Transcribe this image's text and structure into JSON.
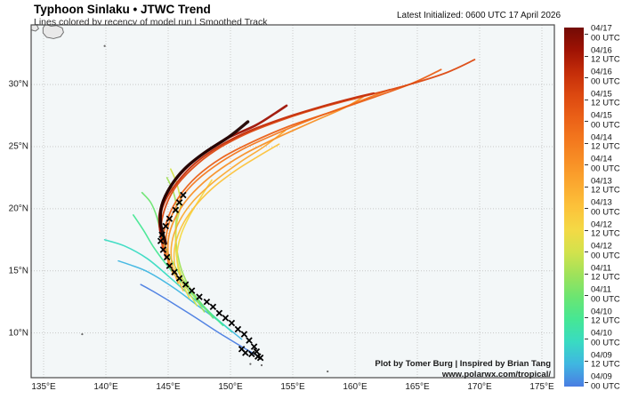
{
  "header": {
    "title": "Typhoon Sinlaku • JTWC Trend",
    "subtitle": "Lines colored by recency of model run | Smoothed Track",
    "latest_init": "Latest Initialized: 0600 UTC 17 April 2026"
  },
  "credits": {
    "line1": "Plot by Tomer Burg | Inspired by Brian Tang",
    "line2": "www.polarwx.com/tropical/"
  },
  "colors": {
    "ocean": "#f3f7f8",
    "land_fill": "#e9e9e9",
    "land_stroke": "#666666",
    "grid": "#c8c8c8",
    "frame": "#4a4a4a",
    "observed_marker": "#000000"
  },
  "chart_data": {
    "type": "line",
    "title": "Typhoon Sinlaku • JTWC Trend",
    "x_axis": {
      "ticks": [
        135,
        140,
        145,
        150,
        155,
        160,
        165,
        170,
        175
      ],
      "suffix": "°E",
      "range": [
        134,
        176
      ]
    },
    "y_axis": {
      "ticks": [
        10,
        15,
        20,
        25,
        30
      ],
      "suffix": "°N",
      "range": [
        6.4,
        34.8
      ]
    },
    "grid": true,
    "legend_position": "right-colorbar",
    "observed_track": {
      "marker": "x",
      "points": [
        [
          146.2,
          21.1
        ],
        [
          145.9,
          20.5
        ],
        [
          145.6,
          19.9
        ],
        [
          145.1,
          19.2
        ],
        [
          144.8,
          18.6
        ],
        [
          144.5,
          17.9
        ],
        [
          144.4,
          17.4
        ],
        [
          144.6,
          16.7
        ],
        [
          144.9,
          16.1
        ],
        [
          145.1,
          15.4
        ],
        [
          145.5,
          14.9
        ],
        [
          145.9,
          14.4
        ],
        [
          146.4,
          13.9
        ],
        [
          146.9,
          13.4
        ],
        [
          147.5,
          12.9
        ],
        [
          148.1,
          12.5
        ],
        [
          148.6,
          12.1
        ],
        [
          149.1,
          11.6
        ],
        [
          149.6,
          11.2
        ],
        [
          150.1,
          10.8
        ],
        [
          150.6,
          10.3
        ],
        [
          151.1,
          9.9
        ],
        [
          151.5,
          9.4
        ],
        [
          151.9,
          8.9
        ],
        [
          152.1,
          8.5
        ],
        [
          151.7,
          8.3
        ],
        [
          151.2,
          8.4
        ],
        [
          152.2,
          8.1
        ],
        [
          150.9,
          8.7
        ],
        [
          152.4,
          8.0
        ]
      ]
    },
    "runs": [
      {
        "label": "04/17 00 UTC",
        "color": "#730b05",
        "line_color": "#200100",
        "width": 3.4,
        "track": [
          [
            144.8,
            17.2
          ],
          [
            144.4,
            18.8
          ],
          [
            144.5,
            20.3
          ],
          [
            145.2,
            21.8
          ],
          [
            146.3,
            23.2
          ],
          [
            147.9,
            24.5
          ],
          [
            149.9,
            25.8
          ],
          [
            151.4,
            27.0
          ]
        ]
      },
      {
        "label": "04/16 12 UTC",
        "color": "#9e1204",
        "width": 2.6,
        "track": [
          [
            144.4,
            18.0
          ],
          [
            144.3,
            19.5
          ],
          [
            144.8,
            21.1
          ],
          [
            145.9,
            22.7
          ],
          [
            147.5,
            24.2
          ],
          [
            149.6,
            25.6
          ],
          [
            152.0,
            26.7
          ],
          [
            153.6,
            27.7
          ],
          [
            154.5,
            28.3
          ]
        ]
      },
      {
        "label": "04/16 00 UTC",
        "color": "#c42d09",
        "width": 2.0,
        "track": [
          [
            144.5,
            17.3
          ],
          [
            144.3,
            18.9
          ],
          [
            144.7,
            20.5
          ],
          [
            145.7,
            22.1
          ],
          [
            147.2,
            23.7
          ],
          [
            149.2,
            25.1
          ],
          [
            151.6,
            26.3
          ],
          [
            154.3,
            27.3
          ],
          [
            157.2,
            28.2
          ],
          [
            159.8,
            28.9
          ],
          [
            161.5,
            29.3
          ]
        ]
      },
      {
        "label": "04/15 12 UTC",
        "color": "#dc4810",
        "width": 1.8,
        "track": [
          [
            144.6,
            16.6
          ],
          [
            144.4,
            18.2
          ],
          [
            144.7,
            19.9
          ],
          [
            145.5,
            21.6
          ],
          [
            146.9,
            23.2
          ],
          [
            148.8,
            24.7
          ],
          [
            151.2,
            26.0
          ],
          [
            154.0,
            27.1
          ],
          [
            157.1,
            28.1
          ],
          [
            160.5,
            29.0
          ],
          [
            164.0,
            29.9
          ],
          [
            167.2,
            30.9
          ],
          [
            169.6,
            32.0
          ]
        ]
      },
      {
        "label": "04/15 00 UTC",
        "color": "#ea6017",
        "width": 1.8,
        "track": [
          [
            144.8,
            16.0
          ],
          [
            144.6,
            17.6
          ],
          [
            145.0,
            19.3
          ],
          [
            145.9,
            21.0
          ],
          [
            147.3,
            22.6
          ],
          [
            149.3,
            24.1
          ],
          [
            151.8,
            25.4
          ],
          [
            154.6,
            26.6
          ],
          [
            157.8,
            27.7
          ],
          [
            161.3,
            28.9
          ],
          [
            164.6,
            30.1
          ],
          [
            166.9,
            31.2
          ]
        ]
      },
      {
        "label": "04/14 12 UTC",
        "color": "#f3781e",
        "width": 1.7,
        "track": [
          [
            145.1,
            15.3
          ],
          [
            144.8,
            16.9
          ],
          [
            145.0,
            18.6
          ],
          [
            145.7,
            20.3
          ],
          [
            146.9,
            21.9
          ],
          [
            148.7,
            23.4
          ],
          [
            151.0,
            24.8
          ],
          [
            153.6,
            26.0
          ],
          [
            156.5,
            27.2
          ],
          [
            159.7,
            28.4
          ],
          [
            162.8,
            29.6
          ]
        ]
      },
      {
        "label": "04/14 00 UTC",
        "color": "#f89026",
        "width": 1.7,
        "track": [
          [
            145.4,
            14.7
          ],
          [
            145.0,
            16.3
          ],
          [
            145.1,
            18.0
          ],
          [
            145.8,
            19.7
          ],
          [
            147.0,
            21.3
          ],
          [
            148.8,
            22.9
          ],
          [
            151.1,
            24.4
          ],
          [
            153.7,
            25.7
          ],
          [
            156.6,
            27.0
          ],
          [
            159.3,
            28.2
          ],
          [
            160.8,
            29.1
          ]
        ]
      },
      {
        "label": "04/13 12 UTC",
        "color": "#fba930",
        "width": 1.6,
        "track": [
          [
            145.8,
            14.0
          ],
          [
            145.3,
            15.6
          ],
          [
            145.3,
            17.3
          ],
          [
            145.9,
            19.0
          ],
          [
            147.0,
            20.6
          ],
          [
            148.7,
            22.2
          ],
          [
            150.7,
            23.7
          ],
          [
            152.7,
            25.0
          ],
          [
            154.4,
            26.3
          ]
        ]
      },
      {
        "label": "04/13 00 UTC",
        "color": "#fcc23a",
        "width": 1.6,
        "track": [
          [
            146.2,
            13.4
          ],
          [
            145.6,
            15.0
          ],
          [
            145.5,
            16.7
          ],
          [
            146.0,
            18.4
          ],
          [
            147.0,
            20.0
          ],
          [
            148.5,
            21.6
          ],
          [
            150.3,
            23.0
          ],
          [
            152.2,
            24.2
          ],
          [
            153.9,
            25.2
          ]
        ]
      },
      {
        "label": "04/12 12 UTC",
        "color": "#f4d945",
        "width": 1.6,
        "track": [
          [
            146.7,
            12.8
          ],
          [
            146.0,
            14.4
          ],
          [
            145.7,
            16.1
          ],
          [
            146.0,
            17.8
          ],
          [
            146.7,
            19.4
          ],
          [
            147.6,
            20.9
          ],
          [
            148.5,
            22.3
          ]
        ]
      },
      {
        "label": "04/12 00 UTC",
        "color": "#d3e24c",
        "width": 1.6,
        "track": [
          [
            147.3,
            12.2
          ],
          [
            146.4,
            13.8
          ],
          [
            145.8,
            15.5
          ],
          [
            145.6,
            17.2
          ],
          [
            145.7,
            18.9
          ],
          [
            146.0,
            20.4
          ],
          [
            145.7,
            22.0
          ],
          [
            145.2,
            23.2
          ]
        ]
      },
      {
        "label": "04/11 12 UTC",
        "color": "#a0e25a",
        "width": 1.6,
        "track": [
          [
            147.9,
            11.7
          ],
          [
            146.9,
            13.3
          ],
          [
            146.1,
            15.0
          ],
          [
            145.7,
            16.7
          ],
          [
            145.6,
            18.4
          ],
          [
            145.7,
            19.9
          ],
          [
            145.4,
            21.4
          ],
          [
            144.9,
            22.5
          ]
        ]
      },
      {
        "label": "04/11 00 UTC",
        "color": "#6ce571",
        "width": 1.6,
        "track": [
          [
            148.6,
            11.2
          ],
          [
            147.4,
            12.7
          ],
          [
            146.2,
            14.3
          ],
          [
            145.2,
            16.0
          ],
          [
            144.5,
            17.7
          ],
          [
            144.1,
            19.3
          ],
          [
            143.6,
            20.5
          ],
          [
            142.9,
            21.3
          ]
        ]
      },
      {
        "label": "04/10 12 UTC",
        "color": "#46e794",
        "width": 1.6,
        "track": [
          [
            149.4,
            10.6
          ],
          [
            148.0,
            12.0
          ],
          [
            146.5,
            13.6
          ],
          [
            145.1,
            15.2
          ],
          [
            143.9,
            16.8
          ],
          [
            143.0,
            18.3
          ],
          [
            142.2,
            19.5
          ]
        ]
      },
      {
        "label": "04/10 00 UTC",
        "color": "#39dbc2",
        "width": 1.6,
        "track": [
          [
            150.1,
            10.1
          ],
          [
            148.6,
            11.4
          ],
          [
            146.9,
            12.9
          ],
          [
            145.1,
            14.5
          ],
          [
            143.3,
            16.0
          ],
          [
            141.5,
            17.0
          ],
          [
            139.9,
            17.5
          ]
        ]
      },
      {
        "label": "04/09 12 UTC",
        "color": "#3fb6e1",
        "width": 1.5,
        "track": [
          [
            150.9,
            9.5
          ],
          [
            149.4,
            10.7
          ],
          [
            147.5,
            12.1
          ],
          [
            145.5,
            13.6
          ],
          [
            143.4,
            14.9
          ],
          [
            141.9,
            15.5
          ],
          [
            141.0,
            15.8
          ]
        ]
      },
      {
        "label": "04/09 00 UTC",
        "color": "#4a7de2",
        "width": 1.5,
        "track": [
          [
            152.3,
            8.1
          ],
          [
            150.9,
            8.9
          ],
          [
            149.1,
            10.0
          ],
          [
            147.1,
            11.3
          ],
          [
            145.2,
            12.5
          ],
          [
            143.7,
            13.4
          ],
          [
            142.8,
            13.9
          ]
        ]
      }
    ],
    "map_features": {
      "land_polygons": [
        [
          [
            135.15,
            34.85
          ],
          [
            135.6,
            34.7
          ],
          [
            136.05,
            34.75
          ],
          [
            136.5,
            34.55
          ],
          [
            136.6,
            34.2
          ],
          [
            136.35,
            33.85
          ],
          [
            135.8,
            33.7
          ],
          [
            135.25,
            33.8
          ],
          [
            134.95,
            34.15
          ],
          [
            134.95,
            34.55
          ]
        ],
        [
          [
            134.0,
            34.85
          ],
          [
            134.45,
            34.8
          ],
          [
            134.6,
            34.5
          ],
          [
            134.35,
            34.3
          ],
          [
            134.0,
            34.4
          ]
        ]
      ],
      "island_dots": [
        [
          139.9,
          33.1
        ],
        [
          151.6,
          7.5
        ],
        [
          152.5,
          7.4
        ],
        [
          157.8,
          6.9
        ],
        [
          138.1,
          9.9
        ]
      ]
    }
  }
}
